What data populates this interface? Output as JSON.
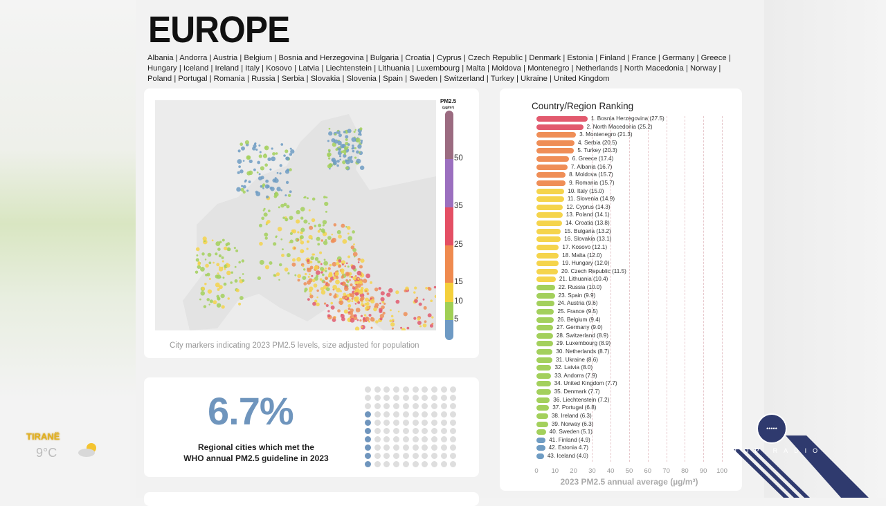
{
  "header": {
    "title": "EUROPE",
    "countries": "Albania | Andorra | Austria | Belgium | Bosnia and Herzegovina | Bulgaria | Croatia | Cyprus | Czech Republic | Denmark | Estonia | Finland | France | Germany | Greece | Hungary | Iceland | Ireland | Italy | Kosovo | Latvia | Liechtenstein | Lithuania | Luxembourg | Malta | Moldova | Montenegro | Netherlands | North Macedonia | Norway | Poland | Portugal | Romania | Russia | Serbia | Slovakia | Slovenia | Spain | Sweden | Switzerland | Turkey | Ukraine | United Kingdom"
  },
  "map": {
    "legend_title": "PM2.5",
    "legend_unit": "(µg/m³)",
    "legend_ticks": [
      "50",
      "35",
      "25",
      "15",
      "10",
      "5"
    ],
    "caption": "City markers indicating 2023 PM2.5 levels, size adjusted for population"
  },
  "stat": {
    "value": "6.7%",
    "line1": "Regional cities which met the",
    "line2": "WHO annual PM2.5 guideline in 2023",
    "dots_total": 100,
    "dots_met": 7
  },
  "colors": {
    "red": "#e25a6e",
    "orange": "#ef8e57",
    "yellow": "#f5d44c",
    "green": "#a3d05c",
    "blue": "#6f9cc3",
    "stat_blue": "#6f95bd",
    "logo": "#2f3a6e"
  },
  "weather": {
    "city": "TIRANË",
    "temp": "9°C",
    "icon": "partly-cloudy-icon"
  },
  "logo": {
    "text": "TOP RADIO"
  },
  "chart_data": {
    "type": "bar",
    "orientation": "horizontal",
    "title": "Country/Region Ranking",
    "xlabel": "2023 PM2.5 annual average (µg/m³)",
    "xlim": [
      0,
      100
    ],
    "xticks": [
      "0",
      "10",
      "20",
      "30",
      "40",
      "50",
      "60",
      "70",
      "80",
      "90",
      "100"
    ],
    "labels": [
      "1. Bosnia Herzegovina (27.5)",
      "2. North Macedonia (25.2)",
      "3. Montenegro (21.3)",
      "4. Serbia (20.5)",
      "5. Turkey (20.3)",
      "6. Greece (17.4)",
      "7. Albania (16.7)",
      "8. Moldova (15.7)",
      "9. Romania (15.7)",
      "10. Italy (15.0)",
      "11. Slovenia (14.9)",
      "12. Cyprus (14.3)",
      "13. Poland (14.1)",
      "14. Croatia (13.8)",
      "15. Bulgaria (13.2)",
      "16. Slovakia (13.1)",
      "17. Kosovo (12.1)",
      "18. Malta (12.0)",
      "19. Hungary (12.0)",
      "20. Czech Republic (11.5)",
      "21. Lithuania (10.4)",
      "22. Russia (10.0)",
      "23. Spain (9.9)",
      "24. Austria (9.6)",
      "25. France (9.5)",
      "26. Belgium (9.4)",
      "27. Germany (9.0)",
      "28. Switzerland (8.9)",
      "29. Luxembourg (8.9)",
      "30. Netherlands (8.7)",
      "31. Ukraine (8.6)",
      "32. Latvia (8.0)",
      "33. Andorra (7.9)",
      "34. United Kingdom (7.7)",
      "35. Denmark (7.7)",
      "36. Liechtenstein (7.2)",
      "37. Portugal (6.8)",
      "38. Ireland (6.3)",
      "39. Norway (6.3)",
      "40. Sweden (5.1)",
      "41. Finland (4.9)",
      "42. Estonia 4.7)",
      "43. Iceland (4.0)"
    ],
    "values": [
      27.5,
      25.2,
      21.3,
      20.5,
      20.3,
      17.4,
      16.7,
      15.7,
      15.7,
      15.0,
      14.9,
      14.3,
      14.1,
      13.8,
      13.2,
      13.1,
      12.1,
      12.0,
      12.0,
      11.5,
      10.4,
      10.0,
      9.9,
      9.6,
      9.5,
      9.4,
      9.0,
      8.9,
      8.9,
      8.7,
      8.6,
      8.0,
      7.9,
      7.7,
      7.7,
      7.2,
      6.8,
      6.3,
      6.3,
      5.1,
      4.9,
      4.7,
      4.0
    ]
  }
}
